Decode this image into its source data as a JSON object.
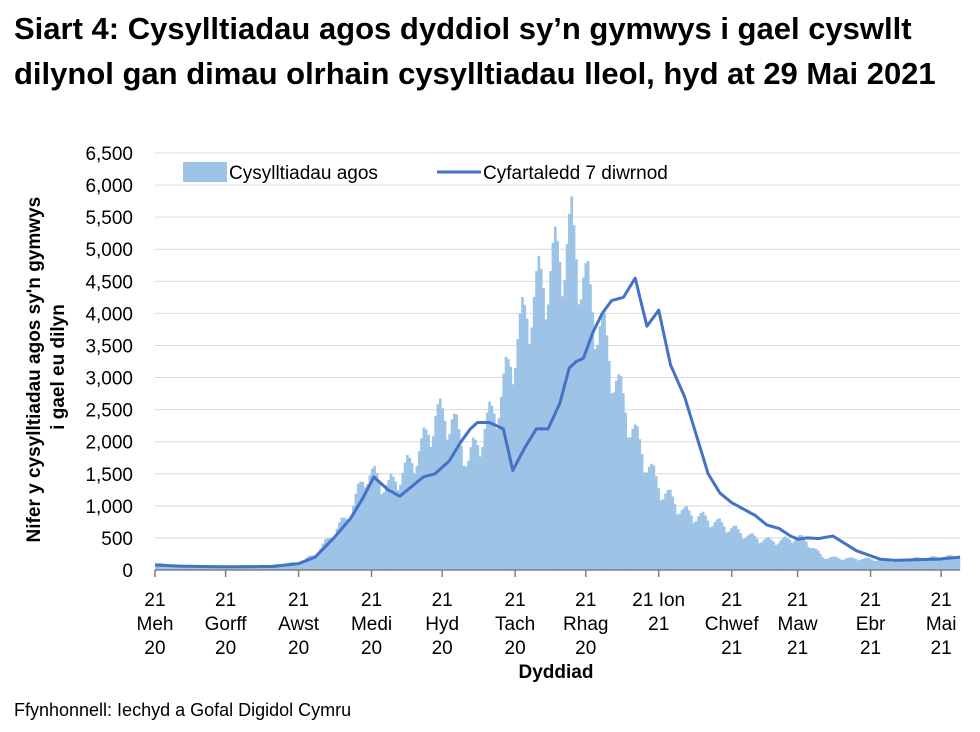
{
  "title": "Siart 4: Cysylltiadau agos dyddiol sy’n gymwys i gael cyswllt dilynol gan dimau olrhain cysylltiadau lleol, hyd at 29 Mai 2021",
  "source": "Ffynhonnell: Iechyd a Gofal Digidol Cymru",
  "colors": {
    "bars": "#9dc3e6",
    "line": "#4472c4",
    "grid": "#d9d9d9"
  },
  "chart_data": {
    "type": "bar",
    "xlabel": "Dyddiad",
    "ylabel_lines": [
      "Nifer y cysylltiadau agos sy'n gymwys",
      "i gael eu dilyn"
    ],
    "ylim": [
      0,
      6500
    ],
    "ytick_labels": [
      "0",
      "500",
      "1,000",
      "1,500",
      "2,000",
      "2,500",
      "3,000",
      "3,500",
      "4,000",
      "4,500",
      "5,000",
      "5,500",
      "6,000",
      "6,500"
    ],
    "xtick_labels": [
      [
        "21",
        "Meh",
        "20"
      ],
      [
        "21",
        "Gorff",
        "20"
      ],
      [
        "21",
        "Awst",
        "20"
      ],
      [
        "21",
        "Medi",
        "20"
      ],
      [
        "21",
        "Hyd",
        "20"
      ],
      [
        "21",
        "Tach",
        "20"
      ],
      [
        "21",
        "Rhag",
        "20"
      ],
      [
        "21 Ion",
        "21"
      ],
      [
        "21",
        "Chwef",
        "21"
      ],
      [
        "21",
        "Maw",
        "21"
      ],
      [
        "21",
        "Ebr",
        "21"
      ],
      [
        "21",
        "Mai",
        "21"
      ]
    ],
    "x_start": "2020-06-21",
    "x_end": "2021-05-29",
    "legend_position": "top",
    "series": [
      {
        "name": "Cysylltiadau agos",
        "type": "bar",
        "anchor_dates": [
          "2020-06-21",
          "2020-07-05",
          "2020-07-21",
          "2020-08-05",
          "2020-08-21",
          "2020-08-28",
          "2020-09-05",
          "2020-09-12",
          "2020-09-18",
          "2020-09-22",
          "2020-09-28",
          "2020-10-05",
          "2020-10-12",
          "2020-10-18",
          "2020-10-25",
          "2020-11-01",
          "2020-11-08",
          "2020-11-15",
          "2020-11-21",
          "2020-11-28",
          "2020-12-05",
          "2020-12-10",
          "2020-12-15",
          "2020-12-22",
          "2020-12-28",
          "2021-01-05",
          "2021-01-12",
          "2021-01-21",
          "2021-02-01",
          "2021-02-10",
          "2021-02-21",
          "2021-03-01",
          "2021-03-10",
          "2021-03-17",
          "2021-03-21",
          "2021-03-25",
          "2021-04-01",
          "2021-04-10",
          "2021-04-21",
          "2021-05-01",
          "2021-05-10",
          "2021-05-21",
          "2021-05-29"
        ],
        "anchor_values": [
          100,
          60,
          50,
          60,
          120,
          250,
          600,
          900,
          1500,
          1450,
          1300,
          1550,
          1900,
          2400,
          2350,
          1700,
          2200,
          2700,
          3500,
          4200,
          4600,
          4900,
          5200,
          4300,
          3700,
          2700,
          2000,
          1300,
          900,
          800,
          650,
          520,
          450,
          470,
          520,
          450,
          200,
          180,
          170,
          140,
          180,
          200,
          220
        ]
      },
      {
        "name": "Cyfartaledd 7 diwrnod",
        "type": "line",
        "anchor_dates": [
          "2020-06-21",
          "2020-07-01",
          "2020-07-21",
          "2020-08-10",
          "2020-08-21",
          "2020-08-28",
          "2020-09-05",
          "2020-09-12",
          "2020-09-17",
          "2020-09-22",
          "2020-09-28",
          "2020-10-03",
          "2020-10-08",
          "2020-10-13",
          "2020-10-18",
          "2020-10-24",
          "2020-10-29",
          "2020-11-02",
          "2020-11-05",
          "2020-11-10",
          "2020-11-16",
          "2020-11-20",
          "2020-11-25",
          "2020-11-30",
          "2020-12-05",
          "2020-12-10",
          "2020-12-14",
          "2020-12-17",
          "2020-12-20",
          "2020-12-24",
          "2020-12-28",
          "2021-01-01",
          "2021-01-06",
          "2021-01-11",
          "2021-01-16",
          "2021-01-21",
          "2021-01-26",
          "2021-02-01",
          "2021-02-06",
          "2021-02-11",
          "2021-02-16",
          "2021-02-21",
          "2021-02-26",
          "2021-03-03",
          "2021-03-08",
          "2021-03-13",
          "2021-03-18",
          "2021-03-21",
          "2021-03-25",
          "2021-03-30",
          "2021-04-05",
          "2021-04-15",
          "2021-04-25",
          "2021-05-01",
          "2021-05-10",
          "2021-05-20",
          "2021-05-29"
        ],
        "anchor_values": [
          80,
          60,
          50,
          55,
          100,
          200,
          500,
          800,
          1100,
          1450,
          1250,
          1150,
          1300,
          1450,
          1500,
          1700,
          2000,
          2200,
          2300,
          2300,
          2200,
          1550,
          1900,
          2200,
          2200,
          2600,
          3150,
          3250,
          3300,
          3700,
          4000,
          4200,
          4250,
          4550,
          3800,
          4050,
          3200,
          2700,
          2100,
          1500,
          1200,
          1050,
          950,
          850,
          700,
          650,
          530,
          480,
          500,
          490,
          530,
          300,
          170,
          150,
          160,
          170,
          200
        ]
      }
    ]
  }
}
